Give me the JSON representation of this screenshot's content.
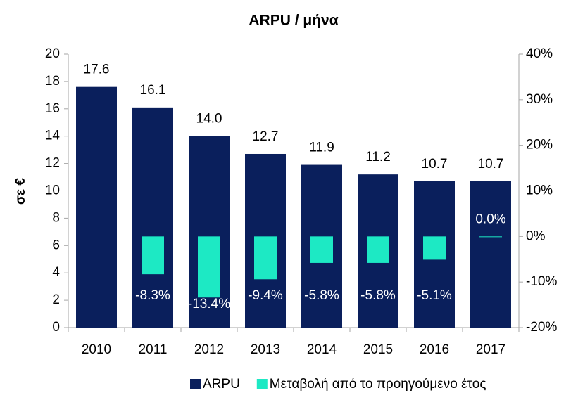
{
  "chart_data": {
    "type": "bar",
    "title": "ARPU / μήνα",
    "y_label": "σε €",
    "categories": [
      "2010",
      "2011",
      "2012",
      "2013",
      "2014",
      "2015",
      "2016",
      "2017"
    ],
    "series": [
      {
        "name": "ARPU",
        "color": "#0a1f5c",
        "axis": "y",
        "values": [
          17.6,
          16.1,
          14.0,
          12.7,
          11.9,
          11.2,
          10.7,
          10.7
        ],
        "value_labels": [
          "17.6",
          "16.1",
          "14.0",
          "12.7",
          "11.9",
          "11.2",
          "10.7",
          "10.7"
        ]
      },
      {
        "name": "Μεταβολή από το προηγούμενο έτος",
        "color": "#1de9c4",
        "axis": "y2",
        "values": [
          null,
          -8.3,
          -13.4,
          -9.4,
          -5.8,
          -5.8,
          -5.1,
          0.0
        ],
        "value_labels": [
          null,
          "-8.3%",
          "-13.4%",
          "-9.4%",
          "-5.8%",
          "-5.8%",
          "-5.1%",
          "0.0%"
        ]
      }
    ],
    "ylim": [
      0,
      20
    ],
    "yticks": [
      0,
      2,
      4,
      6,
      8,
      10,
      12,
      14,
      16,
      18,
      20
    ],
    "y2lim": [
      -20,
      40
    ],
    "y2ticks": [
      {
        "value": -20,
        "label": "-20%"
      },
      {
        "value": -10,
        "label": "-10%"
      },
      {
        "value": 0,
        "label": "0%"
      },
      {
        "value": 10,
        "label": "10%"
      },
      {
        "value": 20,
        "label": "20%"
      },
      {
        "value": 30,
        "label": "30%"
      },
      {
        "value": 40,
        "label": "40%"
      }
    ],
    "legend": "bottom"
  }
}
